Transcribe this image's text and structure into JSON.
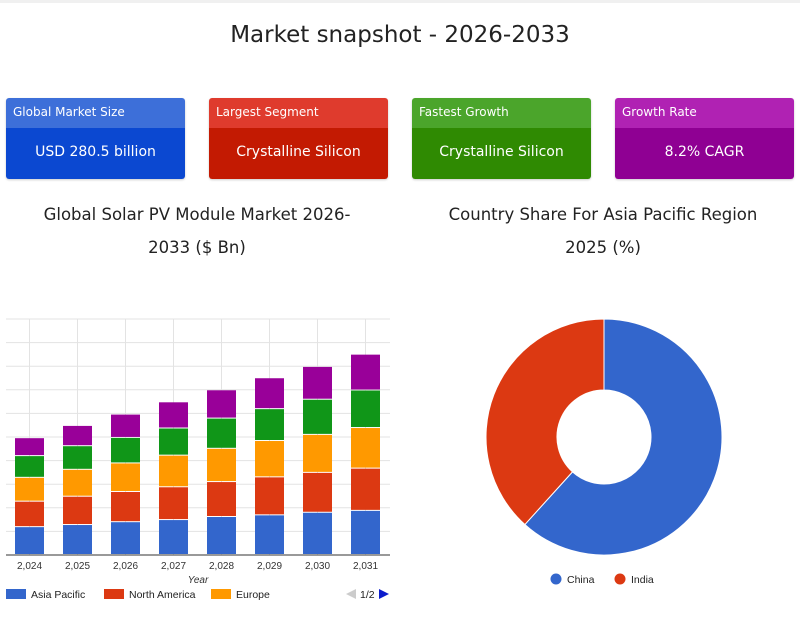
{
  "page_title": "Market snapshot - 2026-2033",
  "cards": [
    {
      "label": "Global Market Size",
      "value": "USD 280.5 billion",
      "header_color": "#3d6fd9",
      "body_color": "#0b48d1"
    },
    {
      "label": "Largest Segment",
      "value": "Crystalline Silicon",
      "header_color": "#df3b2d",
      "body_color": "#c31a02"
    },
    {
      "label": "Fastest Growth",
      "value": "Crystalline Silicon",
      "header_color": "#4ba52b",
      "body_color": "#2f8a02"
    },
    {
      "label": "Growth Rate",
      "value": "8.2% CAGR",
      "header_color": "#b022b3",
      "body_color": "#8f0093"
    }
  ],
  "chart_data": [
    {
      "type": "bar",
      "stacked": true,
      "title_line1": "Global Solar PV Module Market 2026-",
      "title_line2": "2033 ($ Bn)",
      "xlabel": "Year",
      "ylabel": "",
      "ylim": [
        0,
        100
      ],
      "grid": true,
      "categories": [
        "2,024",
        "2,025",
        "2,026",
        "2,027",
        "2,028",
        "2,029",
        "2,030",
        "2,031"
      ],
      "series": [
        {
          "name": "Asia Pacific",
          "color": "#3366cc",
          "values": [
            11.8,
            12.7,
            13.9,
            14.8,
            16.1,
            16.8,
            17.9,
            18.7
          ]
        },
        {
          "name": "North America",
          "color": "#dc3912",
          "values": [
            10.8,
            12.0,
            12.8,
            13.9,
            14.8,
            16.1,
            16.9,
            17.9
          ]
        },
        {
          "name": "Europe",
          "color": "#ff9900",
          "values": [
            10.1,
            11.4,
            12.1,
            13.4,
            14.1,
            15.4,
            16.1,
            17.2
          ]
        },
        {
          "name": "",
          "color": "#109618",
          "values": [
            9.2,
            10.0,
            10.8,
            11.5,
            12.8,
            13.5,
            14.9,
            15.9
          ]
        },
        {
          "name": "",
          "color": "#990099",
          "values": [
            7.6,
            8.6,
            9.9,
            11.1,
            12.0,
            13.1,
            13.9,
            15.2
          ]
        }
      ],
      "legend_position": "bottom",
      "legend_page": "1/2"
    },
    {
      "type": "pie",
      "donut": true,
      "title_line1": "Country Share For Asia Pacific Region",
      "title_line2": "2025 (%)",
      "slices": [
        {
          "label": "China",
          "value": 61.7,
          "color": "#3366cc"
        },
        {
          "label": "India",
          "value": 38.3,
          "color": "#dc3912"
        }
      ],
      "legend_position": "bottom"
    }
  ]
}
